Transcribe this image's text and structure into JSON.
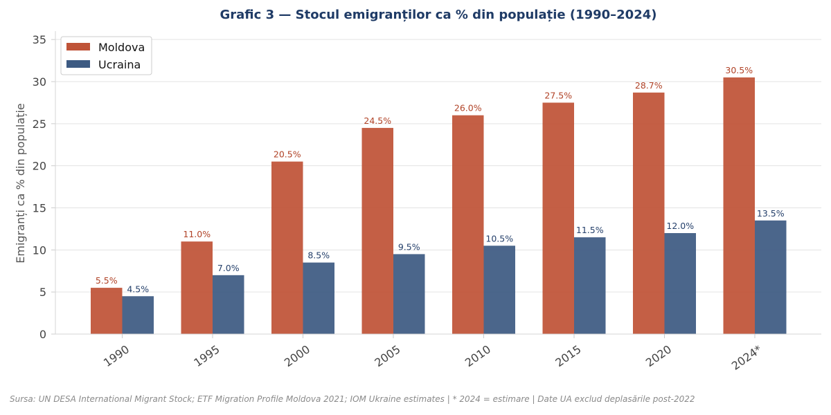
{
  "chart_data": {
    "type": "bar",
    "title": "Grafic 3 — Stocul emigranților ca % din populație (1990–2024)",
    "xlabel": "",
    "ylabel": "Emigranți ca % din populație",
    "categories": [
      "1990",
      "1995",
      "2000",
      "2005",
      "2010",
      "2015",
      "2020",
      "2024*"
    ],
    "series": [
      {
        "name": "Moldova",
        "color": "#bf5337",
        "values": [
          5.5,
          11.0,
          20.5,
          24.5,
          26.0,
          27.5,
          28.7,
          30.5
        ],
        "labels": [
          "5.5%",
          "11.0%",
          "20.5%",
          "24.5%",
          "26.0%",
          "27.5%",
          "28.7%",
          "30.5%"
        ]
      },
      {
        "name": "Ucraina",
        "color": "#3d5a82",
        "values": [
          4.5,
          7.0,
          8.5,
          9.5,
          10.5,
          11.5,
          12.0,
          13.5
        ],
        "labels": [
          "4.5%",
          "7.0%",
          "8.5%",
          "9.5%",
          "10.5%",
          "11.5%",
          "12.0%",
          "13.5%"
        ]
      }
    ],
    "ylim": [
      0,
      36
    ],
    "yticks": [
      "0",
      "5",
      "10",
      "15",
      "20",
      "25",
      "30",
      "35"
    ],
    "grid": true,
    "legend_position": "top-left"
  },
  "source_note": "Sursa: UN DESA International Migrant Stock; ETF Migration Profile Moldova 2021; IOM Ukraine estimates  |  * 2024 = estimare  |  Date UA exclud deplasările post-2022"
}
